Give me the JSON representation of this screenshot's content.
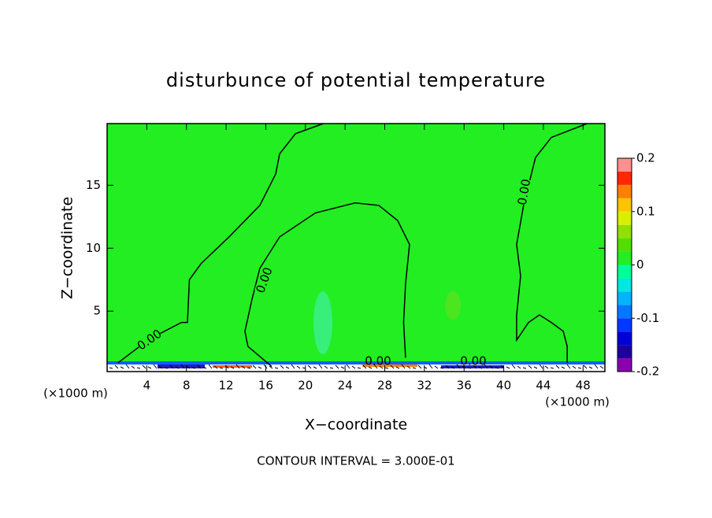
{
  "chart_data": {
    "type": "contour",
    "title": "disturbunce of potential temperature",
    "x_label": "X−coordinate",
    "y_label": "Z−coordinate",
    "x_unit_label": "(×1000 m)",
    "y_unit_label": "(×1000 m)",
    "footnote": "CONTOUR INTERVAL = 3.000E-01",
    "xlim": [
      0,
      50.2
    ],
    "ylim": [
      0.2,
      19.9
    ],
    "xticks": [
      4,
      8,
      12,
      16,
      20,
      24,
      28,
      32,
      36,
      40,
      44,
      48
    ],
    "yticks": [
      5,
      10,
      15
    ],
    "background_level": 0.0,
    "contour_color": "#000000",
    "contours": [
      {
        "level": 0.0,
        "label": "0.00",
        "x": [
          1.1,
          4.3,
          7.5,
          8.1,
          8.3,
          9.5,
          12.3,
          15.4,
          17.0,
          17.4,
          19.0,
          21.8
        ],
        "y": [
          0.9,
          2.8,
          4.1,
          4.1,
          7.5,
          8.8,
          10.9,
          13.4,
          15.9,
          17.5,
          19.1,
          19.9
        ]
      },
      {
        "level": 0.0,
        "label": "0.00",
        "x": [
          16.6,
          14.2,
          13.9,
          14.6,
          15.4,
          17.4,
          21.0,
          25.0,
          27.4,
          29.3,
          30.5,
          30.1,
          29.9,
          30.1
        ],
        "y": [
          0.6,
          2.2,
          3.4,
          5.9,
          8.4,
          10.9,
          12.8,
          13.6,
          13.4,
          12.2,
          10.3,
          7.2,
          4.1,
          1.3
        ]
      },
      {
        "level": 0.0,
        "label": "0.00",
        "x": [
          48.4,
          44.8,
          43.2,
          42.0,
          41.3,
          41.7,
          41.3,
          41.3,
          42.5,
          43.6,
          44.8,
          46.0,
          46.4,
          46.4
        ],
        "y": [
          19.9,
          18.8,
          17.2,
          13.4,
          10.3,
          7.8,
          4.7,
          2.7,
          4.1,
          4.7,
          4.1,
          3.4,
          2.2,
          0.9
        ]
      }
    ],
    "bottom_labels": [
      "0.00",
      "0.00"
    ],
    "colorbar": {
      "levels": [
        -0.2,
        -0.175,
        -0.15,
        -0.125,
        -0.1,
        -0.075,
        -0.05,
        -0.025,
        0,
        0.025,
        0.05,
        0.075,
        0.1,
        0.125,
        0.15,
        0.175,
        0.2
      ],
      "colors": [
        "#8a00b0",
        "#1a00a0",
        "#0000d8",
        "#0038ff",
        "#0078ff",
        "#00b4ff",
        "#00e8e0",
        "#00ff98",
        "#22ee22",
        "#50e000",
        "#90e000",
        "#d8f000",
        "#ffc400",
        "#ff8000",
        "#ff2800",
        "#ff9090"
      ],
      "ticks": [
        -0.2,
        -0.1,
        0,
        0.1,
        0.2
      ]
    }
  }
}
